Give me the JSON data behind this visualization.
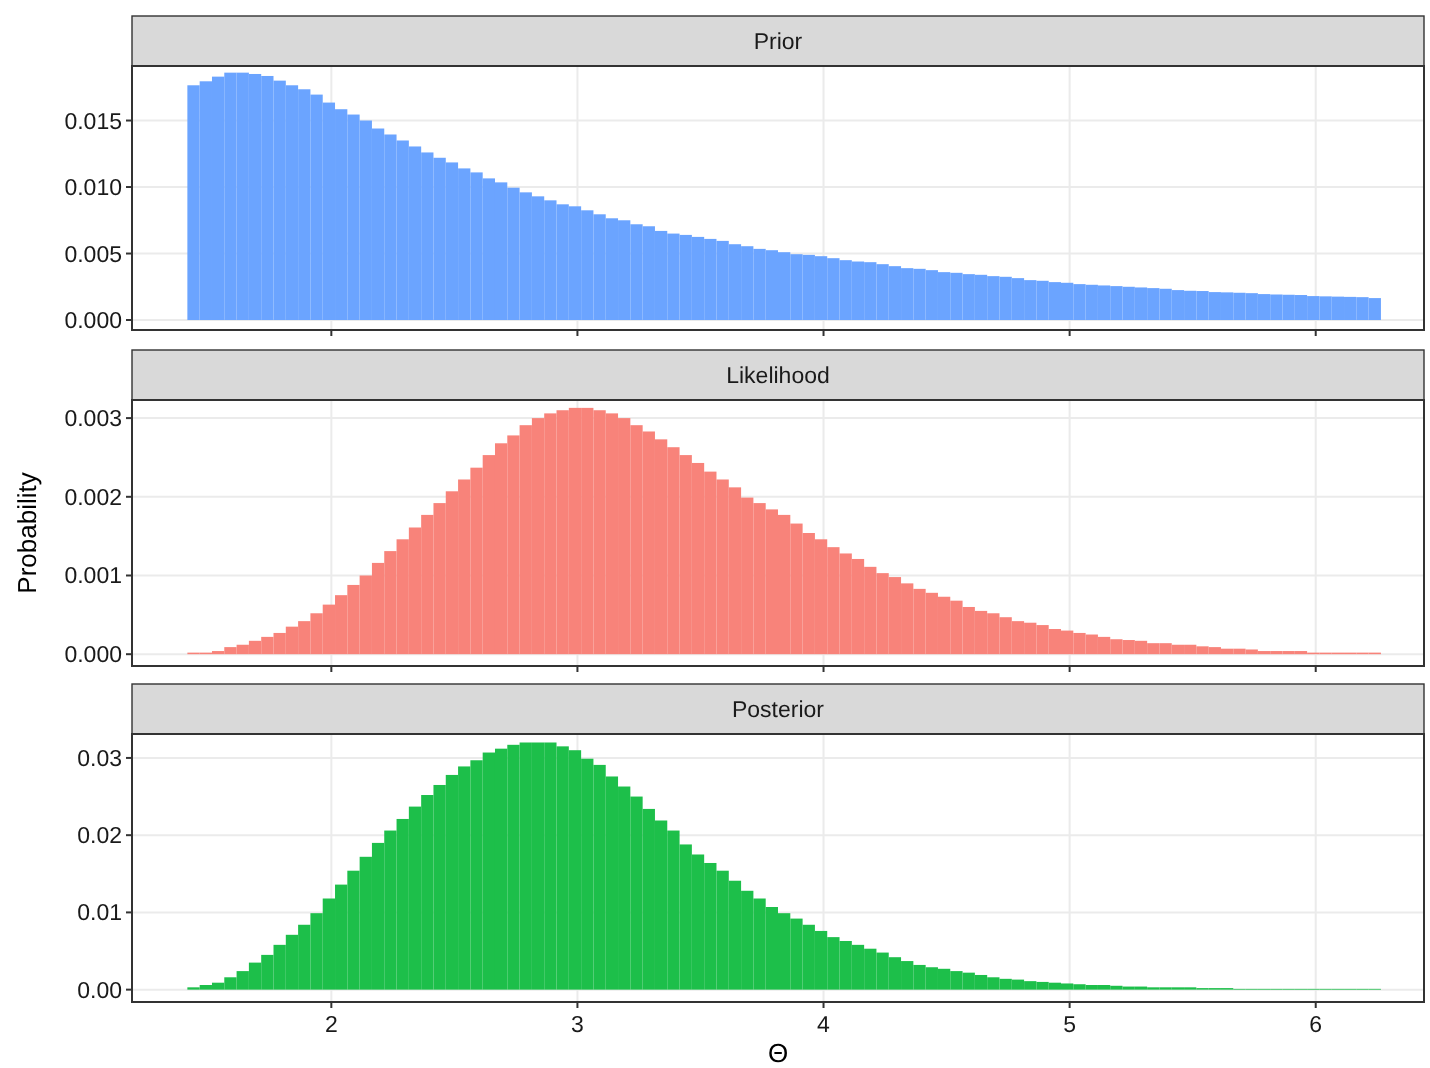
{
  "chart_data": [
    {
      "type": "bar",
      "title": "Prior",
      "x": [
        1.44,
        1.49,
        1.54,
        1.59,
        1.64,
        1.69,
        1.74,
        1.79,
        1.84,
        1.89,
        1.94,
        1.99,
        2.04,
        2.09,
        2.14,
        2.19,
        2.24,
        2.29,
        2.34,
        2.39,
        2.44,
        2.49,
        2.54,
        2.59,
        2.64,
        2.69,
        2.74,
        2.79,
        2.84,
        2.89,
        2.94,
        2.99,
        3.04,
        3.09,
        3.14,
        3.19,
        3.24,
        3.29,
        3.34,
        3.39,
        3.44,
        3.49,
        3.54,
        3.59,
        3.64,
        3.69,
        3.74,
        3.79,
        3.84,
        3.89,
        3.94,
        3.99,
        4.04,
        4.09,
        4.14,
        4.19,
        4.24,
        4.29,
        4.34,
        4.39,
        4.44,
        4.49,
        4.54,
        4.59,
        4.64,
        4.69,
        4.74,
        4.79,
        4.84,
        4.89,
        4.94,
        4.99,
        5.04,
        5.09,
        5.14,
        5.19,
        5.24,
        5.29,
        5.34,
        5.39,
        5.44,
        5.49,
        5.54,
        5.59,
        5.64,
        5.69,
        5.74,
        5.79,
        5.84,
        5.89,
        5.94,
        5.99,
        6.04,
        6.09,
        6.14,
        6.19,
        6.24
      ],
      "values": [
        0.01765,
        0.01795,
        0.0183,
        0.0186,
        0.0186,
        0.0185,
        0.01835,
        0.018,
        0.01765,
        0.01735,
        0.01695,
        0.01635,
        0.01585,
        0.01545,
        0.015,
        0.0144,
        0.01395,
        0.0135,
        0.01305,
        0.0126,
        0.0122,
        0.01185,
        0.0114,
        0.0111,
        0.01065,
        0.01035,
        0.00995,
        0.0096,
        0.0093,
        0.009,
        0.0087,
        0.00855,
        0.00825,
        0.00795,
        0.00765,
        0.0075,
        0.0072,
        0.00705,
        0.0067,
        0.0065,
        0.0064,
        0.00625,
        0.0061,
        0.00595,
        0.0057,
        0.00555,
        0.00535,
        0.00525,
        0.0051,
        0.00495,
        0.0049,
        0.0048,
        0.00465,
        0.0045,
        0.0044,
        0.00435,
        0.0042,
        0.00405,
        0.0039,
        0.00385,
        0.00375,
        0.0036,
        0.00355,
        0.00345,
        0.0034,
        0.0033,
        0.00325,
        0.00315,
        0.003,
        0.00295,
        0.00285,
        0.0028,
        0.0027,
        0.00265,
        0.0026,
        0.00255,
        0.0025,
        0.00245,
        0.0024,
        0.00235,
        0.00225,
        0.0022,
        0.00218,
        0.0021,
        0.00208,
        0.00205,
        0.00202,
        0.00195,
        0.00192,
        0.0019,
        0.00188,
        0.0018,
        0.00178,
        0.00176,
        0.00174,
        0.00172,
        0.00165
      ],
      "color": "#6ba4ff",
      "xlim": [
        1.19,
        6.44
      ],
      "xticks": [
        2,
        3,
        4,
        5,
        6
      ],
      "ylim": [
        -0.00075,
        0.0191
      ],
      "yticks": [
        {
          "value": 0,
          "label": "0.000"
        },
        {
          "value": 0.005,
          "label": "0.005"
        },
        {
          "value": 0.01,
          "label": "0.010"
        },
        {
          "value": 0.015,
          "label": "0.015"
        }
      ],
      "grid": true,
      "tick_labels": "y"
    },
    {
      "type": "bar",
      "title": "Likelihood",
      "ylabel": "Probability",
      "x": [
        1.44,
        1.49,
        1.54,
        1.59,
        1.64,
        1.69,
        1.74,
        1.79,
        1.84,
        1.89,
        1.94,
        1.99,
        2.04,
        2.09,
        2.14,
        2.19,
        2.24,
        2.29,
        2.34,
        2.39,
        2.44,
        2.49,
        2.54,
        2.59,
        2.64,
        2.69,
        2.74,
        2.79,
        2.84,
        2.89,
        2.94,
        2.99,
        3.04,
        3.09,
        3.14,
        3.19,
        3.24,
        3.29,
        3.34,
        3.39,
        3.44,
        3.49,
        3.54,
        3.59,
        3.64,
        3.69,
        3.74,
        3.79,
        3.84,
        3.89,
        3.94,
        3.99,
        4.04,
        4.09,
        4.14,
        4.19,
        4.24,
        4.29,
        4.34,
        4.39,
        4.44,
        4.49,
        4.54,
        4.59,
        4.64,
        4.69,
        4.74,
        4.79,
        4.84,
        4.89,
        4.94,
        4.99,
        5.04,
        5.09,
        5.14,
        5.19,
        5.24,
        5.29,
        5.34,
        5.39,
        5.44,
        5.49,
        5.54,
        5.59,
        5.64,
        5.69,
        5.74,
        5.79,
        5.84,
        5.89,
        5.94,
        5.99,
        6.04,
        6.09,
        6.14,
        6.19,
        6.24
      ],
      "values": [
        2e-05,
        2e-05,
        4e-05,
        9e-05,
        0.00012,
        0.00017,
        0.00022,
        0.00027,
        0.00035,
        0.00042,
        0.00052,
        0.00063,
        0.00075,
        0.00088,
        0.001,
        0.00116,
        0.00131,
        0.00146,
        0.00161,
        0.00177,
        0.00192,
        0.00207,
        0.00222,
        0.00237,
        0.00253,
        0.00268,
        0.00278,
        0.00291,
        0.003,
        0.00306,
        0.0031,
        0.00313,
        0.00313,
        0.0031,
        0.00306,
        0.003,
        0.00291,
        0.00283,
        0.00273,
        0.00263,
        0.00253,
        0.00243,
        0.00232,
        0.00222,
        0.00212,
        0.00199,
        0.00192,
        0.00184,
        0.00177,
        0.00166,
        0.00154,
        0.00146,
        0.00136,
        0.00128,
        0.00121,
        0.00111,
        0.00103,
        0.00098,
        0.0009,
        0.00083,
        0.00078,
        0.00073,
        0.00068,
        0.0006,
        0.00055,
        0.00052,
        0.00047,
        0.00042,
        0.0004,
        0.00037,
        0.00032,
        0.0003,
        0.00027,
        0.00025,
        0.00022,
        0.00019,
        0.00018,
        0.00017,
        0.00014,
        0.00014,
        0.00012,
        0.00012,
        0.0001,
        9e-05,
        7e-05,
        7e-05,
        6e-05,
        4e-05,
        4e-05,
        4e-05,
        4e-05,
        2e-05,
        2e-05,
        2e-05,
        2e-05,
        2e-05,
        2e-05
      ],
      "color": "#f8837a",
      "xlim": [
        1.19,
        6.44
      ],
      "xticks": [
        2,
        3,
        4,
        5,
        6
      ],
      "ylim": [
        -0.00015,
        0.00323
      ],
      "yticks": [
        {
          "value": 0,
          "label": "0.000"
        },
        {
          "value": 0.001,
          "label": "0.001"
        },
        {
          "value": 0.002,
          "label": "0.002"
        },
        {
          "value": 0.003,
          "label": "0.003"
        }
      ],
      "grid": true,
      "tick_labels": "y"
    },
    {
      "type": "bar",
      "title": "Posterior",
      "xlabel": "Θ",
      "x": [
        1.44,
        1.49,
        1.54,
        1.59,
        1.64,
        1.69,
        1.74,
        1.79,
        1.84,
        1.89,
        1.94,
        1.99,
        2.04,
        2.09,
        2.14,
        2.19,
        2.24,
        2.29,
        2.34,
        2.39,
        2.44,
        2.49,
        2.54,
        2.59,
        2.64,
        2.69,
        2.74,
        2.79,
        2.84,
        2.89,
        2.94,
        2.99,
        3.04,
        3.09,
        3.14,
        3.19,
        3.24,
        3.29,
        3.34,
        3.39,
        3.44,
        3.49,
        3.54,
        3.59,
        3.64,
        3.69,
        3.74,
        3.79,
        3.84,
        3.89,
        3.94,
        3.99,
        4.04,
        4.09,
        4.14,
        4.19,
        4.24,
        4.29,
        4.34,
        4.39,
        4.44,
        4.49,
        4.54,
        4.59,
        4.64,
        4.69,
        4.74,
        4.79,
        4.84,
        4.89,
        4.94,
        4.99,
        5.04,
        5.09,
        5.14,
        5.19,
        5.24,
        5.29,
        5.34,
        5.39,
        5.44,
        5.49,
        5.54,
        5.59,
        5.64,
        5.69,
        5.74,
        5.79,
        5.84,
        5.89,
        5.94,
        5.99,
        6.04,
        6.09,
        6.14,
        6.19,
        6.24
      ],
      "values": [
        0.0003,
        0.0006,
        0.0009,
        0.0016,
        0.0024,
        0.0035,
        0.0045,
        0.0058,
        0.0071,
        0.0084,
        0.0099,
        0.0118,
        0.0136,
        0.0154,
        0.0172,
        0.019,
        0.0206,
        0.0221,
        0.0237,
        0.0252,
        0.0265,
        0.0278,
        0.0289,
        0.0297,
        0.0307,
        0.0312,
        0.0317,
        0.032,
        0.032,
        0.032,
        0.0315,
        0.031,
        0.0299,
        0.0291,
        0.0276,
        0.0263,
        0.025,
        0.0234,
        0.0219,
        0.0206,
        0.0188,
        0.0175,
        0.0164,
        0.0154,
        0.0141,
        0.0128,
        0.0118,
        0.0107,
        0.0099,
        0.0092,
        0.0084,
        0.0076,
        0.0068,
        0.0063,
        0.0058,
        0.0053,
        0.0048,
        0.0042,
        0.0037,
        0.0032,
        0.0029,
        0.0027,
        0.0024,
        0.0022,
        0.0019,
        0.0016,
        0.0014,
        0.0013,
        0.0011,
        0.001,
        0.0009,
        0.0008,
        0.0007,
        0.0006,
        0.0006,
        0.0005,
        0.0004,
        0.0004,
        0.0003,
        0.0003,
        0.0003,
        0.0003,
        0.0002,
        0.0002,
        0.0002,
        0.0001,
        0.0001,
        0.0001,
        0.0001,
        0.0001,
        0.0001,
        0.0001,
        0.0001,
        0.0001,
        0.0001,
        0.0001,
        0.0001
      ],
      "color": "#1dbf4a",
      "xlim": [
        1.19,
        6.44
      ],
      "xticks": [
        2,
        3,
        4,
        5,
        6
      ],
      "ylim": [
        -0.0016,
        0.0331
      ],
      "yticks": [
        {
          "value": 0,
          "label": "0.00"
        },
        {
          "value": 0.01,
          "label": "0.01"
        },
        {
          "value": 0.02,
          "label": "0.02"
        },
        {
          "value": 0.03,
          "label": "0.03"
        }
      ],
      "grid": true
    }
  ]
}
